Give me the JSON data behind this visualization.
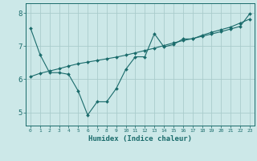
{
  "xlabel": "Humidex (Indice chaleur)",
  "background_color": "#cce8e8",
  "line_color": "#1a6b6b",
  "grid_color": "#aacccc",
  "xlim": [
    -0.5,
    23.5
  ],
  "ylim": [
    4.6,
    8.3
  ],
  "xticks": [
    0,
    1,
    2,
    3,
    4,
    5,
    6,
    7,
    8,
    9,
    10,
    11,
    12,
    13,
    14,
    15,
    16,
    17,
    18,
    19,
    20,
    21,
    22,
    23
  ],
  "yticks": [
    5,
    6,
    7,
    8
  ],
  "series1_x": [
    0,
    1,
    2,
    3,
    4,
    5,
    6,
    7,
    8,
    9,
    10,
    11,
    12,
    13,
    14,
    15,
    16,
    17,
    18,
    19,
    20,
    21,
    22,
    23
  ],
  "series1_y": [
    7.55,
    6.75,
    6.2,
    6.2,
    6.15,
    5.65,
    4.92,
    5.32,
    5.32,
    5.72,
    6.3,
    6.68,
    6.68,
    7.38,
    6.98,
    7.05,
    7.22,
    7.22,
    7.33,
    7.42,
    7.5,
    7.58,
    7.7,
    7.82
  ],
  "series2_x": [
    0,
    1,
    2,
    3,
    4,
    5,
    6,
    7,
    8,
    9,
    10,
    11,
    12,
    13,
    14,
    15,
    16,
    17,
    18,
    19,
    20,
    21,
    22,
    23
  ],
  "series2_y": [
    6.08,
    6.18,
    6.25,
    6.32,
    6.4,
    6.47,
    6.52,
    6.57,
    6.62,
    6.67,
    6.73,
    6.8,
    6.87,
    6.94,
    7.02,
    7.1,
    7.17,
    7.23,
    7.3,
    7.37,
    7.44,
    7.52,
    7.6,
    7.98
  ]
}
